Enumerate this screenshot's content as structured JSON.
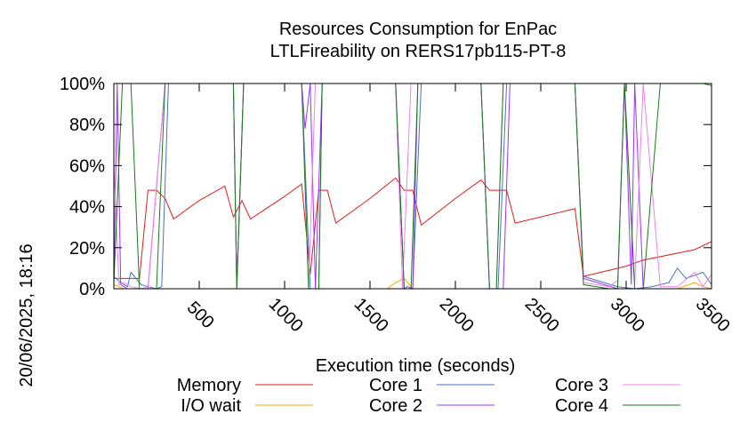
{
  "chart_data": {
    "type": "line",
    "title": "Resources Consumption for EnPac",
    "subtitle": "LTLFireability on RERS17pb115-PT-8",
    "xlabel": "Execution time (seconds)",
    "ylabel": "",
    "side_label": "20/06/2025, 18:16",
    "xlim": [
      0,
      3500
    ],
    "ylim": [
      0,
      100
    ],
    "x_ticks": [
      500,
      1000,
      1500,
      2000,
      2500,
      3000,
      3500
    ],
    "y_ticks": [
      {
        "value": 0,
        "label": "0%"
      },
      {
        "value": 20,
        "label": "20%"
      },
      {
        "value": 40,
        "label": "40%"
      },
      {
        "value": 60,
        "label": "60%"
      },
      {
        "value": 80,
        "label": "80%"
      },
      {
        "value": 100,
        "label": "100%"
      }
    ],
    "legend_position": "bottom",
    "series": [
      {
        "name": "Memory",
        "color": "#e41a1c",
        "x": [
          0,
          50,
          150,
          200,
          250,
          300,
          350,
          500,
          650,
          700,
          750,
          800,
          1000,
          1100,
          1150,
          1200,
          1250,
          1300,
          1500,
          1650,
          1700,
          1750,
          1800,
          2000,
          2150,
          2200,
          2300,
          2350,
          2700,
          2750,
          3000,
          3100,
          3400,
          3500
        ],
        "y": [
          5,
          5,
          5,
          48,
          48,
          44,
          34,
          43,
          50,
          35,
          43,
          34,
          45,
          51,
          7,
          48,
          48,
          32,
          44,
          54,
          48,
          48,
          31,
          44,
          53,
          48,
          48,
          32,
          39,
          6,
          11,
          14,
          19,
          23
        ]
      },
      {
        "name": "I/O wait",
        "color": "#ffa500",
        "x": [
          0,
          30,
          60,
          100,
          200,
          300,
          1600,
          1650,
          1700,
          1750,
          2700,
          3000,
          3300,
          3400,
          3450,
          3500
        ],
        "y": [
          2,
          1,
          0,
          0,
          0,
          0,
          0,
          3,
          5,
          0,
          0,
          0,
          0,
          3,
          1,
          0
        ]
      },
      {
        "name": "Core 1",
        "color": "#4472c4",
        "x": [
          0,
          40,
          80,
          100,
          160,
          200,
          250,
          280,
          320,
          700,
          720,
          760,
          1100,
          1150,
          1200,
          1220,
          1260,
          1650,
          1700,
          1750,
          1800,
          2150,
          2200,
          2250,
          2300,
          2350,
          2700,
          2750,
          2950,
          3050,
          3150,
          3250,
          3300,
          3350,
          3450,
          3500
        ],
        "y": [
          6,
          3,
          1,
          8,
          2,
          1,
          0,
          1,
          100,
          100,
          1,
          100,
          100,
          0,
          0,
          100,
          100,
          100,
          0,
          0,
          100,
          100,
          0,
          0,
          100,
          100,
          100,
          6,
          1,
          0,
          1,
          3,
          10,
          5,
          8,
          2
        ]
      },
      {
        "name": "Core 2",
        "color": "#9b30ff",
        "x": [
          0,
          20,
          40,
          80,
          160,
          200,
          300,
          700,
          720,
          760,
          1100,
          1120,
          1150,
          1180,
          1220,
          1650,
          1700,
          1720,
          1750,
          1780,
          2150,
          2200,
          2240,
          2280,
          2320,
          2700,
          2750,
          2950,
          2990,
          3030,
          3050,
          3100,
          3500
        ],
        "y": [
          5,
          100,
          2,
          0,
          0,
          0,
          100,
          100,
          0,
          100,
          100,
          78,
          100,
          0,
          100,
          100,
          0,
          1,
          0,
          100,
          100,
          0,
          0,
          0,
          100,
          100,
          5,
          0,
          100,
          2,
          100,
          0,
          0
        ]
      },
      {
        "name": "Core 3",
        "color": "#ee82ee",
        "x": [
          0,
          30,
          60,
          100,
          160,
          200,
          300,
          700,
          720,
          760,
          1100,
          1140,
          1180,
          1220,
          1650,
          1690,
          1740,
          2150,
          2200,
          2240,
          2280,
          2700,
          2750,
          2900,
          2950,
          2990,
          3050,
          3100,
          3200,
          3300,
          3400,
          3450,
          3500
        ],
        "y": [
          60,
          2,
          3,
          1,
          0,
          1,
          100,
          100,
          2,
          100,
          100,
          0,
          100,
          100,
          100,
          0,
          100,
          100,
          0,
          0,
          100,
          100,
          3,
          1,
          4,
          100,
          2,
          100,
          1,
          1,
          8,
          1,
          7
        ]
      },
      {
        "name": "Core 4",
        "color": "#1a7a1a",
        "x": [
          0,
          50,
          100,
          150,
          200,
          250,
          300,
          700,
          720,
          760,
          1100,
          1140,
          1200,
          1220,
          1650,
          1700,
          1740,
          1780,
          2150,
          2200,
          2240,
          2280,
          2320,
          2700,
          2750,
          2900,
          2950,
          2990,
          3050,
          3100,
          3200,
          3300,
          3400,
          3450,
          3500
        ],
        "y": [
          3,
          100,
          100,
          0,
          0,
          0,
          100,
          100,
          0,
          100,
          100,
          0,
          0,
          100,
          100,
          0,
          0,
          100,
          100,
          0,
          0,
          100,
          100,
          100,
          2,
          0,
          0,
          100,
          0,
          0,
          100,
          100,
          100,
          100,
          99
        ]
      }
    ]
  }
}
